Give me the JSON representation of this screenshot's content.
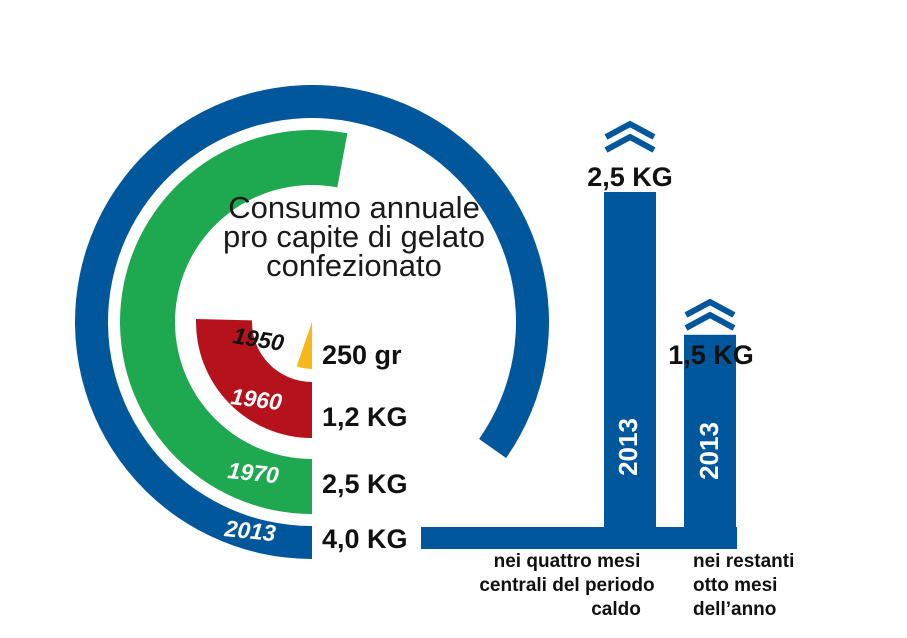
{
  "chart_data": {
    "type": "radial-bar",
    "title_lines": [
      "Consumo annuale",
      "pro capite di gelato",
      "confezionato"
    ],
    "unit": "kg",
    "max_value": 4.0,
    "rings": [
      {
        "year": "1950",
        "value": 0.25,
        "label": "250 gr",
        "color": "#F6B81A"
      },
      {
        "year": "1960",
        "value": 1.2,
        "label": "1,2 KG",
        "color": "#B5121B"
      },
      {
        "year": "1970",
        "value": 2.5,
        "label": "2,5 KG",
        "color": "#1EA84F"
      },
      {
        "year": "2013",
        "value": 4.0,
        "label": "4,0 KG",
        "color": "#00579C"
      }
    ],
    "bars": {
      "year": "2013",
      "color": "#00579C",
      "max_value": 2.5,
      "items": [
        {
          "value": 2.5,
          "label": "2,5 KG",
          "caption_lines": [
            "nei quattro mesi",
            "centrali del periodo",
            "caldo"
          ]
        },
        {
          "value": 1.5,
          "label": "1,5 KG",
          "caption_lines": [
            "nei restanti",
            "otto mesi",
            "dell’anno"
          ]
        }
      ]
    }
  }
}
